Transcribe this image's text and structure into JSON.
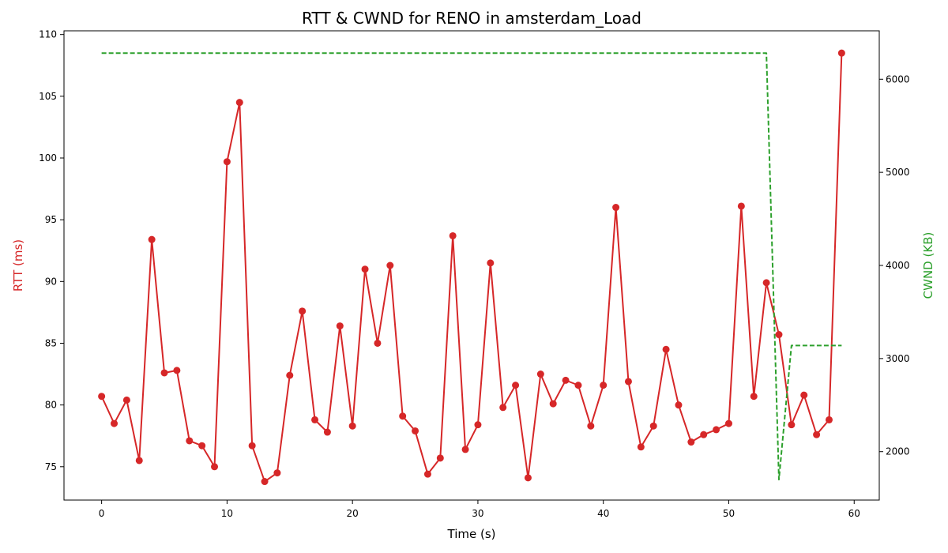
{
  "chart_data": {
    "type": "line",
    "title": "RTT & CWND for RENO in amsterdam_Load",
    "xlabel": "Time (s)",
    "ylabel_left": "RTT (ms)",
    "ylabel_right": "CWND (KB)",
    "xlim": [
      -3,
      62
    ],
    "ylim_left": [
      72.3,
      110.3
    ],
    "ylim_right": [
      1480,
      6520
    ],
    "x_ticks": [
      0,
      10,
      20,
      30,
      40,
      50,
      60
    ],
    "y_left_ticks": [
      75,
      80,
      85,
      90,
      95,
      100,
      105,
      110
    ],
    "y_right_ticks": [
      2000,
      3000,
      4000,
      5000,
      6000
    ],
    "grid": false,
    "legend": "none",
    "series": [
      {
        "key": "rtt",
        "axis": "left",
        "style": "solid-with-markers",
        "color": "#d62728",
        "x": [
          0,
          1,
          2,
          3,
          4,
          5,
          6,
          7,
          8,
          9,
          10,
          11,
          12,
          13,
          14,
          15,
          16,
          17,
          18,
          19,
          20,
          21,
          22,
          23,
          24,
          25,
          26,
          27,
          28,
          29,
          30,
          31,
          32,
          33,
          34,
          35,
          36,
          37,
          38,
          39,
          40,
          41,
          42,
          43,
          44,
          45,
          46,
          47,
          48,
          49,
          50,
          51,
          52,
          53,
          54,
          55,
          56,
          57,
          58,
          59
        ],
        "values": [
          80.7,
          78.5,
          80.4,
          75.5,
          93.4,
          82.6,
          82.8,
          77.1,
          76.7,
          75.0,
          99.7,
          104.5,
          76.7,
          73.8,
          74.5,
          82.4,
          87.6,
          78.8,
          77.8,
          86.4,
          78.3,
          91.0,
          85.0,
          91.3,
          79.1,
          77.9,
          74.4,
          75.7,
          93.7,
          76.4,
          78.4,
          91.5,
          79.8,
          81.6,
          74.1,
          82.5,
          80.1,
          82.0,
          81.6,
          78.3,
          81.6,
          96.0,
          81.9,
          76.6,
          78.3,
          84.5,
          80.0,
          77.0,
          77.6,
          78.0,
          78.5,
          96.1,
          80.7,
          89.9,
          85.7,
          78.4,
          80.8,
          77.6,
          78.8,
          108.5
        ]
      },
      {
        "key": "cwnd",
        "axis": "right",
        "style": "dashed",
        "color": "#2ca02c",
        "x": [
          0,
          53,
          54,
          55,
          59
        ],
        "values": [
          6280,
          6280,
          1700,
          3140,
          3140
        ]
      }
    ]
  }
}
